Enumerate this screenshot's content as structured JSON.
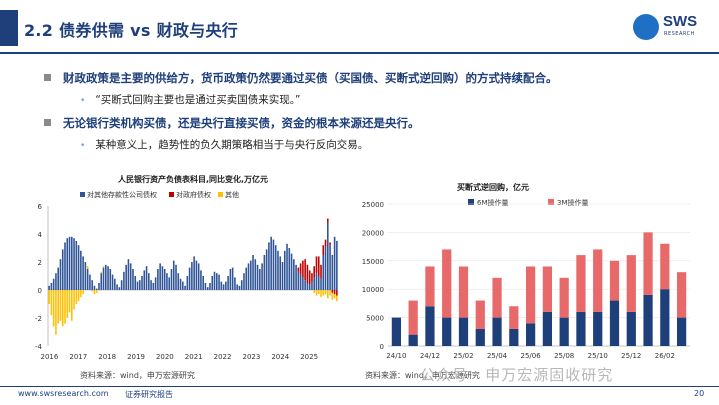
{
  "header": {
    "title": "2.2 债券供需 vs 财政与央行",
    "logo_text": "SWS",
    "logo_sub": "RESEARCH"
  },
  "bullets": [
    {
      "level": 1,
      "text": "财政政策是主要的供给方，货币政策仍然要通过买债（买国债、买断式逆回购）的方式持续配合。"
    },
    {
      "level": 2,
      "text": "“买断式回购主要也是通过买卖国债来实现。”"
    },
    {
      "level": 1,
      "text": "无论银行类机构买债，还是央行直接买债，资金的根本来源还是央行。"
    },
    {
      "level": 2,
      "text": "某种意义上，趋势性的负久期策略相当于与央行反向交易。"
    }
  ],
  "chart_left_source": "资料来源：wind，申万宏源研究",
  "chart_right_source": "资料来源：wind，申万宏源研究",
  "footer": {
    "website": "www.swsresearch.com",
    "report_type": "证券研究报告",
    "page": "20"
  },
  "watermark": "公众号 · 申万宏源固收研究",
  "colors": {
    "brand": "#1f3f7a",
    "series_a": "#2f5597",
    "series_b": "#c00000",
    "series_c": "#ffc000",
    "bar_6m": "#1f3f7a",
    "bar_3m": "#e8696a"
  },
  "chart_data": [
    {
      "type": "bar",
      "title": "人民银行资产负债表科目,同比变化,万亿元",
      "legend_position": "top",
      "ylim": [
        -4,
        6
      ],
      "yticks": [
        -4,
        -2,
        0,
        2,
        4,
        6
      ],
      "xticks": [
        "2016",
        "2017",
        "2018",
        "2019",
        "2020",
        "2021",
        "2022",
        "2023",
        "2024",
        "2025"
      ],
      "series": [
        {
          "name": "对其他存款性公司债权",
          "values": [
            0.3,
            0.5,
            0.8,
            1.2,
            1.6,
            2.2,
            2.9,
            3.4,
            3.7,
            3.8,
            3.8,
            3.7,
            3.5,
            3.2,
            2.8,
            2.4,
            2.0,
            1.5,
            1.1,
            0.7,
            0.3,
            0.1,
            0.5,
            1.2,
            1.6,
            1.8,
            1.7,
            1.5,
            1.1,
            0.8,
            0.4,
            0.2,
            0.7,
            1.3,
            1.8,
            2.2,
            1.9,
            1.5,
            1.0,
            0.6,
            0.7,
            1.0,
            1.4,
            1.7,
            1.2,
            0.7,
            0.5,
            0.9,
            1.5,
            1.9,
            1.7,
            1.5,
            1.2,
            0.9,
            1.5,
            2.1,
            1.8,
            1.2,
            0.8,
            0.6,
            0.3,
            1.0,
            1.6,
            2.0,
            2.4,
            2.1,
            1.9,
            1.4,
            1.0,
            0.5,
            0.2,
            0.5,
            1.0,
            1.3,
            1.2,
            1.1,
            0.6,
            0.4,
            0.6,
            1.0,
            1.5,
            1.6,
            0.9,
            0.4,
            0.3,
            0.7,
            1.2,
            1.6,
            1.9,
            2.1,
            2.5,
            2.2,
            1.8,
            1.5,
            1.9,
            2.5,
            2.9,
            3.4,
            3.8,
            3.6,
            3.2,
            2.8,
            2.4,
            2.0,
            2.8,
            3.3,
            3.0,
            2.6,
            2.2,
            1.8,
            1.3,
            1.1,
            0.9,
            0.7,
            0.5,
            0.4,
            0.6,
            0.9,
            1.2,
            1.0,
            0.8,
            2.5,
            3.1,
            4.8,
            3.2,
            2.5,
            3.8,
            3.5
          ]
        },
        {
          "name": "对政府债权",
          "values": [
            0,
            0,
            0,
            0,
            0,
            0,
            0,
            0,
            0,
            0,
            0,
            0,
            0,
            0,
            0,
            0,
            0,
            0,
            0,
            0,
            0,
            0,
            0,
            0,
            0,
            0,
            0,
            0,
            0,
            0,
            0,
            0,
            0,
            0,
            0,
            0,
            0,
            0,
            0,
            0,
            0,
            0,
            0,
            0,
            0,
            0,
            0,
            0,
            0,
            0,
            0,
            0,
            0,
            0,
            0,
            0,
            0,
            0,
            0,
            0,
            0,
            0,
            0,
            0,
            0,
            0,
            0,
            0,
            0,
            0,
            0,
            0,
            0,
            0,
            0,
            0,
            0,
            0,
            0,
            0,
            0,
            0,
            0,
            0,
            0,
            0,
            0,
            0,
            0,
            0,
            0,
            0,
            0,
            0,
            0,
            0,
            0,
            0,
            0,
            0,
            0,
            0,
            0,
            0,
            0,
            0,
            0,
            0,
            0,
            0,
            0.3,
            0.8,
            1.2,
            1.5,
            1.3,
            1.0,
            0.6,
            0.8,
            1.2,
            1.4,
            1.0,
            0.7,
            0.5,
            0.3,
            0.2,
            -0.2,
            -0.3,
            -0.4,
            -0.5,
            -0.6
          ]
        },
        {
          "name": "其他",
          "values": [
            -1.0,
            -1.8,
            -2.6,
            -3.2,
            -2.4,
            -2.2,
            -2.6,
            -2.4,
            -2.0,
            -1.6,
            -2.2,
            -1.4,
            -1.0,
            -0.8,
            -0.5,
            -0.3,
            0,
            0.2,
            0,
            -0.1,
            -0.3,
            -0.2,
            0,
            0.1,
            0.1,
            0,
            0,
            0,
            0,
            0,
            0,
            0,
            0,
            0,
            0,
            0,
            0,
            0,
            0,
            0,
            0,
            0,
            0,
            0,
            0,
            0,
            0,
            0,
            0,
            0,
            0,
            0,
            0,
            0,
            0,
            0,
            0,
            0,
            0,
            0,
            0,
            0,
            0,
            0,
            0,
            0,
            0,
            0,
            0,
            0,
            0,
            0,
            0,
            0,
            0,
            0,
            0,
            0,
            0,
            0,
            0,
            0,
            0,
            0,
            0,
            0,
            0,
            0,
            0,
            0,
            0,
            0,
            0,
            0,
            0,
            0,
            0,
            0,
            0,
            0,
            0,
            0,
            0,
            0,
            0,
            0,
            0,
            0,
            0,
            0,
            0,
            0,
            0,
            0,
            0,
            0,
            0,
            -0.2,
            -0.4,
            -0.3,
            -0.5,
            -0.4,
            -0.3,
            -0.6,
            -0.4,
            -0.5,
            -0.3,
            -0.4,
            -0.2,
            -0.3
          ]
        }
      ]
    },
    {
      "type": "bar",
      "title": "买断式逆回购，亿元",
      "stacked": true,
      "legend_position": "top",
      "ylim": [
        0,
        25000
      ],
      "yticks": [
        0,
        5000,
        10000,
        15000,
        20000,
        25000
      ],
      "categories": [
        "24/10",
        "24/11",
        "24/12",
        "25/01",
        "25/02",
        "25/03",
        "25/04",
        "25/05",
        "25/06",
        "25/07",
        "25/08",
        "25/09",
        "25/10",
        "25/11",
        "25/12",
        "26/01",
        "26/02",
        "26/03"
      ],
      "xticks": [
        "24/10",
        "24/12",
        "25/02",
        "25/04",
        "25/06",
        "25/08",
        "25/10",
        "25/12",
        "26/02"
      ],
      "series": [
        {
          "name": "6M操作量",
          "values": [
            5000,
            2000,
            7000,
            5000,
            5000,
            3000,
            5000,
            3000,
            4000,
            6000,
            5000,
            6000,
            6000,
            8000,
            6000,
            9000,
            10000,
            5000
          ]
        },
        {
          "name": "3M操作量",
          "values": [
            0,
            6000,
            7000,
            12000,
            9000,
            5000,
            7000,
            4000,
            10000,
            8000,
            7000,
            10000,
            11000,
            7000,
            10000,
            11000,
            8000,
            8000
          ]
        }
      ]
    }
  ]
}
